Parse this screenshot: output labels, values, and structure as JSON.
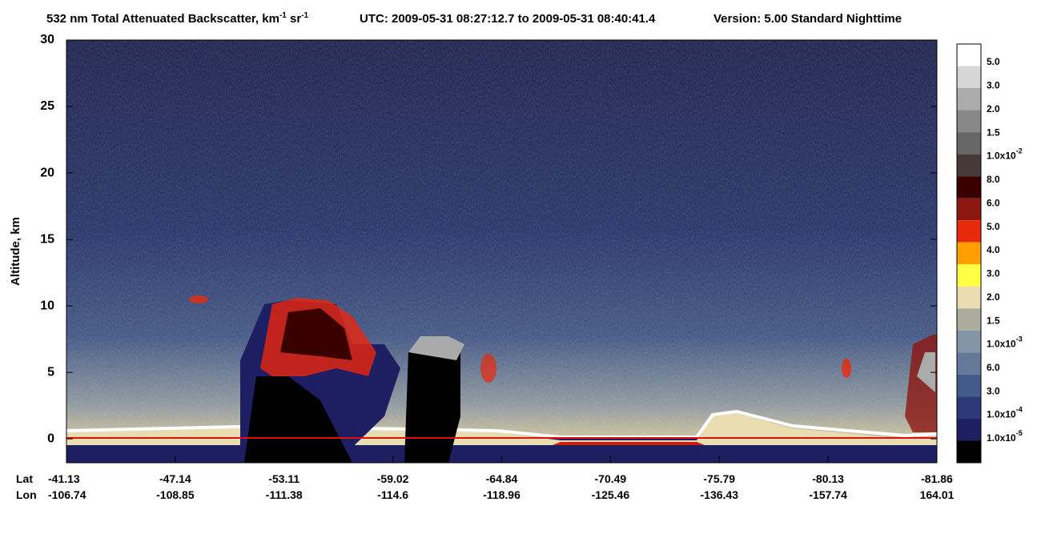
{
  "chart_data": {
    "type": "heatmap",
    "title": [
      "532 nm Total Attenuated Backscatter, km",
      "-1",
      " sr",
      "-1"
    ],
    "utc": "UTC:  2009-05-31 08:27:12.7  to  2009-05-31 08:40:41.4",
    "version": "Version: 5.00  Standard  Nighttime",
    "ylabel": "Altitude, km",
    "ylim": [
      -1.8,
      30
    ],
    "yticks": [
      0,
      5,
      10,
      15,
      20,
      25,
      30
    ],
    "x_row_labels": [
      "Lat",
      "Lon"
    ],
    "lat": [
      -41.13,
      -47.14,
      -53.11,
      -59.02,
      -64.84,
      -70.49,
      -75.79,
      -80.13,
      -81.86
    ],
    "lon": [
      -106.74,
      -108.85,
      -111.38,
      -114.6,
      -118.96,
      -125.46,
      -136.43,
      -157.74,
      164.01
    ],
    "colorbar": {
      "colors": [
        "#ffffff",
        "#d6d6d6",
        "#ababab",
        "#888888",
        "#666666",
        "#463a38",
        "#3a0000",
        "#8c1610",
        "#e82a0c",
        "#ffa000",
        "#ffff44",
        "#eadcb0",
        "#acac9e",
        "#8496a6",
        "#657a9a",
        "#435b88",
        "#2c3a78",
        "#1e1f62",
        "#000000"
      ],
      "labels": [
        "5.0",
        "3.0",
        "2.0",
        "1.5",
        {
          "text": "1.0x10",
          "sup": "-2"
        },
        "8.0",
        "6.0",
        "5.0",
        "4.0",
        "3.0",
        "2.0",
        "1.5",
        {
          "text": "1.0x10",
          "sup": "-3"
        },
        "6.0",
        "3.0",
        {
          "text": "1.0x10",
          "sup": "-4"
        },
        {
          "text": "1.0x10",
          "sup": "-5"
        }
      ]
    }
  }
}
